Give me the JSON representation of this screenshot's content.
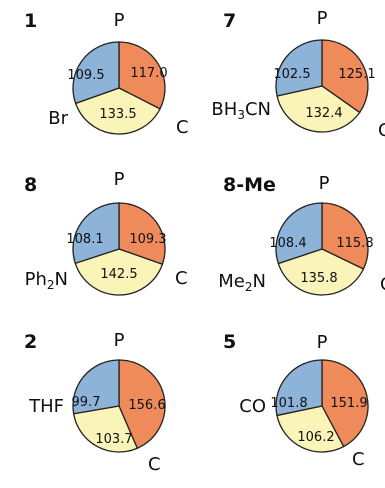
{
  "colors": {
    "p_sector": "#8DB3D9",
    "c_sector": "#EF8B5B",
    "x_sector": "#FBF4B8",
    "outline": "#222222"
  },
  "panels": [
    {
      "id": "1",
      "top": "P",
      "right": "C",
      "left_sub": "",
      "left_parts": [
        {
          "t": "Br"
        }
      ],
      "angle_pc": "117.0",
      "angle_px": "109.5",
      "angle_cx": "133.5"
    },
    {
      "id": "7",
      "top": "P",
      "right": "C",
      "left_parts": [
        {
          "t": "BH"
        },
        {
          "t": "3",
          "sub": true
        },
        {
          "t": "CN"
        }
      ],
      "angle_pc": "125.1",
      "angle_px": "102.5",
      "angle_cx": "132.4"
    },
    {
      "id": "8",
      "top": "P",
      "right": "C",
      "left_parts": [
        {
          "t": "Ph"
        },
        {
          "t": "2",
          "sub": true
        },
        {
          "t": "N"
        }
      ],
      "angle_pc": "109.3",
      "angle_px": "108.1",
      "angle_cx": "142.5"
    },
    {
      "id": "8-Me",
      "top": "P",
      "right": "C",
      "left_parts": [
        {
          "t": "Me"
        },
        {
          "t": "2",
          "sub": true
        },
        {
          "t": "N"
        }
      ],
      "angle_pc": "115.8",
      "angle_px": "108.4",
      "angle_cx": "135.8"
    },
    {
      "id": "2",
      "top": "P",
      "right": "C",
      "left_parts": [
        {
          "t": "THF"
        }
      ],
      "angle_pc": "156.6",
      "angle_px": "99.7",
      "angle_cx": "103.7"
    },
    {
      "id": "5",
      "top": "P",
      "right": "C",
      "left_parts": [
        {
          "t": "CO"
        }
      ],
      "angle_pc": "151.9",
      "angle_px": "101.8",
      "angle_cx": "106.2"
    }
  ]
}
